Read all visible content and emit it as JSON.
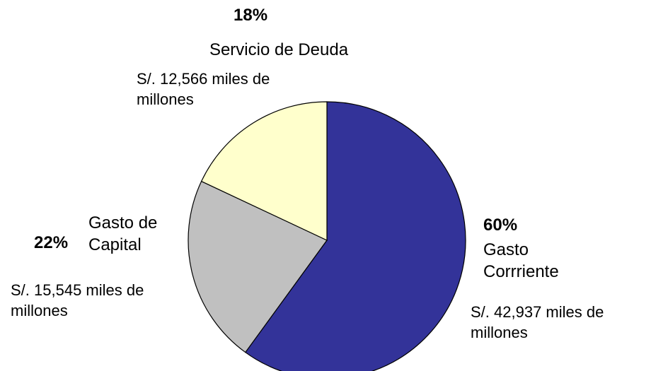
{
  "chart_data": {
    "type": "pie",
    "categories": [
      "Gasto Corrriente",
      "Gasto de Capital",
      "Servicio de Deuda"
    ],
    "values": [
      60,
      22,
      18
    ],
    "value_labels": [
      "60%",
      "22%",
      "18%"
    ],
    "annotations": [
      "S/. 42,937 miles de millones",
      "S/. 15,545 miles de millones",
      "S/. 12,566 miles de millones"
    ],
    "colors": [
      "#333399",
      "#c0c0c0",
      "#ffffcc"
    ]
  }
}
